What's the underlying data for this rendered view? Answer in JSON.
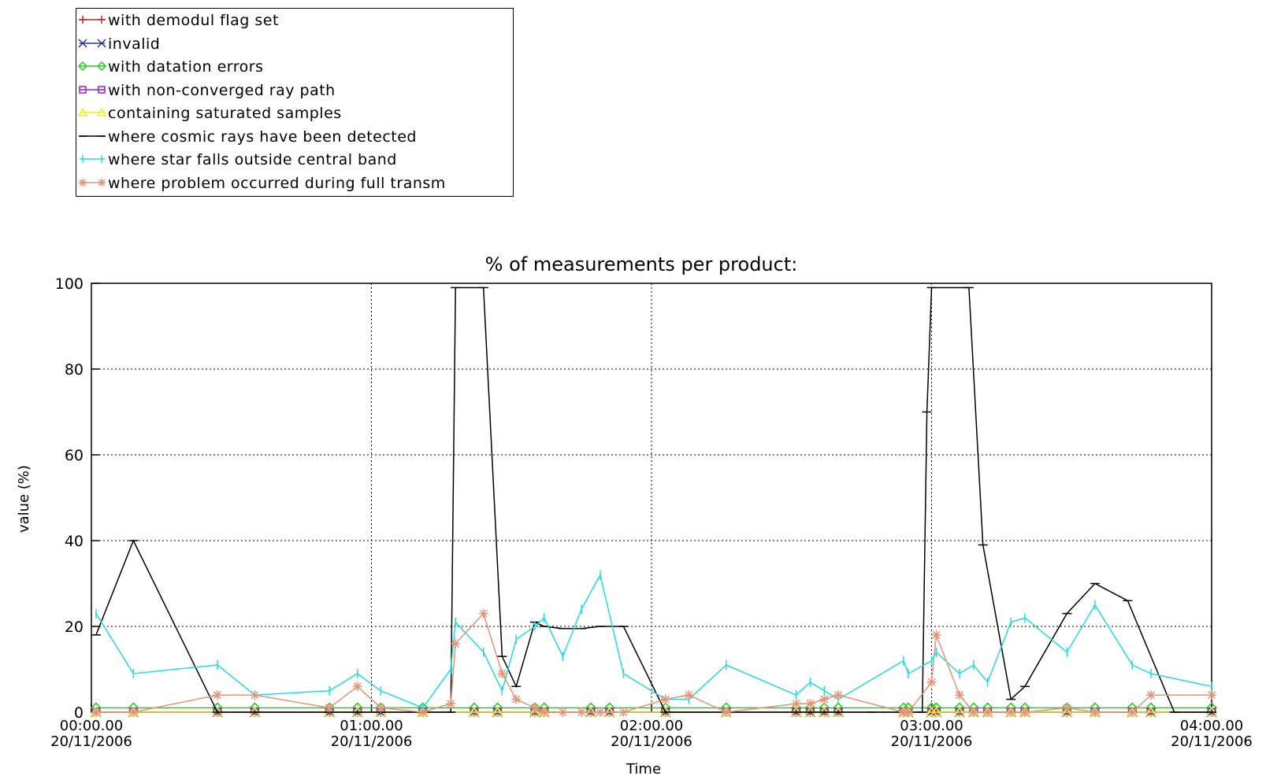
{
  "chart_data": {
    "type": "line",
    "title": "% of measurements per product:",
    "xlabel": "Time",
    "ylabel": "value (%)",
    "xlim": [
      0,
      240
    ],
    "ylim": [
      0,
      100
    ],
    "yticks": [
      0,
      20,
      40,
      60,
      80,
      100
    ],
    "xticks": [
      {
        "x": 0,
        "time": "00:00.00",
        "date": "20/11/2006"
      },
      {
        "x": 60,
        "time": "01:00.00",
        "date": "20/11/2006"
      },
      {
        "x": 120,
        "time": "02:00.00",
        "date": "20/11/2006"
      },
      {
        "x": 180,
        "time": "03:00.00",
        "date": "20/11/2006"
      },
      {
        "x": 240,
        "time": "04:00.00",
        "date": "20/11/2006"
      }
    ],
    "grid": "dotted",
    "legend_position": "above, top-left",
    "series": [
      {
        "name": "with demodul flag set",
        "color": "#cc2222",
        "marker": "plus",
        "x": [
          1,
          9,
          27,
          35,
          51,
          57,
          62,
          71,
          82,
          87,
          95,
          97,
          107,
          111,
          123,
          136,
          151,
          154,
          157,
          160,
          174,
          175,
          180,
          181,
          186,
          189,
          192,
          197,
          200,
          209,
          215,
          223,
          227,
          240
        ],
        "y": [
          0,
          0,
          0,
          0,
          0,
          0,
          0,
          0,
          0,
          0,
          0,
          0,
          0,
          0,
          0,
          0,
          0,
          0,
          0,
          0,
          0,
          0,
          0,
          0,
          0,
          0,
          0,
          0,
          0,
          0,
          0,
          0,
          0,
          0
        ]
      },
      {
        "name": "invalid",
        "color": "#2c3499",
        "marker": "x",
        "x": [
          1,
          9,
          27,
          35,
          51,
          57,
          62,
          71,
          82,
          87,
          95,
          97,
          107,
          111,
          123,
          136,
          151,
          154,
          157,
          160,
          174,
          175,
          180,
          181,
          186,
          189,
          192,
          197,
          200,
          209,
          215,
          223,
          227,
          240
        ],
        "y": [
          0,
          0,
          0,
          0,
          0,
          0,
          0,
          0,
          0,
          0,
          0,
          0,
          0,
          0,
          0,
          0,
          0,
          0,
          0,
          0,
          0,
          0,
          0,
          0,
          0,
          0,
          0,
          0,
          0,
          0,
          0,
          0,
          0,
          0
        ]
      },
      {
        "name": "with datation errors",
        "color": "#22cc22",
        "marker": "diamond",
        "x": [
          1,
          9,
          27,
          35,
          51,
          57,
          62,
          71,
          82,
          87,
          95,
          97,
          107,
          111,
          123,
          136,
          151,
          154,
          157,
          160,
          174,
          175,
          180,
          181,
          186,
          189,
          192,
          197,
          200,
          209,
          215,
          223,
          227,
          240
        ],
        "y": [
          1,
          1,
          1,
          1,
          1,
          1,
          1,
          1,
          1,
          1,
          1,
          1,
          1,
          1,
          1,
          1,
          1,
          1,
          1,
          1,
          1,
          1,
          1,
          1,
          1,
          1,
          1,
          1,
          1,
          1,
          1,
          1,
          1,
          1
        ]
      },
      {
        "name": "with non-converged ray path",
        "color": "#9922bb",
        "marker": "square",
        "x": [
          1,
          9,
          27,
          35,
          51,
          57,
          62,
          71,
          82,
          87,
          95,
          97,
          107,
          111,
          123,
          136,
          151,
          154,
          157,
          160,
          174,
          175,
          180,
          181,
          186,
          189,
          192,
          197,
          200,
          209,
          215,
          223,
          227,
          240
        ],
        "y": [
          0,
          0,
          0,
          0,
          0,
          0,
          0,
          0,
          0,
          0,
          0,
          0,
          0,
          0,
          0,
          0,
          0,
          0,
          0,
          0,
          0,
          0,
          0,
          0,
          0,
          0,
          0,
          0,
          0,
          0,
          0,
          0,
          0,
          0
        ]
      },
      {
        "name": "containing saturated samples",
        "color": "#eeee22",
        "marker": "triangle",
        "x": [
          1,
          9,
          27,
          35,
          51,
          57,
          62,
          71,
          82,
          87,
          95,
          97,
          107,
          111,
          123,
          136,
          151,
          154,
          157,
          160,
          174,
          175,
          180,
          181,
          186,
          189,
          192,
          197,
          200,
          209,
          215,
          223,
          227,
          240
        ],
        "y": [
          0,
          0,
          0,
          0,
          0,
          0,
          0,
          0,
          0,
          0,
          0,
          0,
          0,
          0,
          0,
          0,
          0,
          0,
          0,
          0,
          0,
          0,
          0,
          0,
          0,
          0,
          0,
          0,
          0,
          0,
          0,
          0,
          0,
          0
        ]
      },
      {
        "name": "where cosmic rays have been detected",
        "color": "#000000",
        "marker": "hline",
        "x": [
          1,
          9,
          27,
          35,
          51,
          57,
          62,
          71,
          77,
          78,
          84,
          88,
          91,
          95,
          97,
          101,
          105,
          109,
          114,
          123,
          136,
          151,
          154,
          157,
          160,
          167,
          178,
          179,
          180,
          188,
          191,
          197,
          200,
          209,
          215,
          222,
          232,
          240
        ],
        "y": [
          18,
          40,
          0,
          0,
          0,
          0,
          0,
          0,
          0,
          99,
          99,
          13,
          6,
          21,
          20,
          19.5,
          19.5,
          20,
          20,
          0,
          0,
          0,
          0,
          0,
          0,
          0,
          0,
          70,
          99,
          99,
          39,
          3,
          6,
          23,
          30,
          26,
          0,
          0
        ]
      },
      {
        "name": "where star falls outside central band",
        "color": "#22dddd",
        "marker": "vline",
        "x": [
          1,
          9,
          27,
          35,
          51,
          57,
          62,
          71,
          77,
          78,
          84,
          88,
          91,
          95,
          97,
          101,
          105,
          109,
          114,
          123,
          128,
          136,
          151,
          154,
          157,
          160,
          174,
          175,
          180,
          181,
          186,
          189,
          192,
          197,
          200,
          209,
          215,
          223,
          227,
          240
        ],
        "y": [
          23,
          9,
          11,
          4,
          5,
          9,
          5,
          1,
          10,
          21,
          14,
          5,
          17,
          20,
          22,
          13,
          24,
          32,
          9,
          3,
          3,
          11,
          4,
          7,
          5,
          3,
          12,
          9,
          12,
          14,
          9,
          11,
          7,
          21,
          22,
          14,
          25,
          11,
          9,
          6
        ]
      },
      {
        "name": "where problem occurred during full transm",
        "color": "#e39478",
        "marker": "star",
        "x": [
          1,
          9,
          27,
          35,
          51,
          57,
          62,
          71,
          77,
          78,
          84,
          88,
          91,
          95,
          97,
          101,
          105,
          109,
          114,
          123,
          128,
          136,
          151,
          154,
          157,
          160,
          174,
          175,
          180,
          181,
          186,
          189,
          192,
          197,
          200,
          209,
          215,
          223,
          227,
          240
        ],
        "y": [
          0,
          0,
          4,
          4,
          1,
          6,
          1,
          0,
          2,
          16,
          23,
          9,
          3,
          1,
          0,
          0,
          0,
          0,
          0,
          3,
          4,
          0,
          2,
          2,
          3,
          4,
          0,
          0,
          7,
          18,
          4,
          0,
          0,
          0,
          0,
          1,
          0,
          0,
          4,
          4
        ]
      }
    ]
  }
}
